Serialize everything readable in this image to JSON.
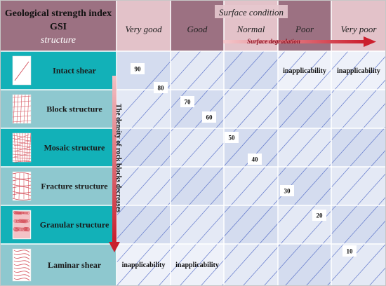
{
  "header": {
    "title_line1": "Geological strength index",
    "title_line2": "GSI",
    "structure_label": "structure",
    "surface_condition": "Surface condition",
    "surface_degradation": "Surface degradation"
  },
  "columns": [
    "Very good",
    "Good",
    "Normal",
    "Poor",
    "Very poor"
  ],
  "rows": [
    {
      "label": "Intact shear",
      "icon": "intact-shear-sketch"
    },
    {
      "label": "Block structure",
      "icon": "block-structure-sketch"
    },
    {
      "label": "Mosaic structure",
      "icon": "mosaic-structure-sketch"
    },
    {
      "label": "Fracture structure",
      "icon": "fracture-structure-sketch"
    },
    {
      "label": "Granular structure",
      "icon": "granular-structure-sketch"
    },
    {
      "label": "Laminar shear",
      "icon": "laminar-shear-sketch"
    }
  ],
  "gsi_values": [
    "90",
    "80",
    "70",
    "60",
    "50",
    "40",
    "30",
    "20",
    "10"
  ],
  "inapplicable": {
    "label": "inapplicability",
    "cells": [
      {
        "row": 0,
        "col": 3
      },
      {
        "row": 0,
        "col": 4
      },
      {
        "row": 5,
        "col": 0
      },
      {
        "row": 5,
        "col": 1
      }
    ]
  },
  "vertical_axis_label": "The density of rock blocks decreases",
  "colors": {
    "header_bg": "#e3c2c9",
    "title_bg": "#9c7182",
    "row_label_bg": "#12b1b8",
    "row_label_bg_alt": "#8ec8cf",
    "cell_bg": "#d4dcef",
    "cell_bg_alt": "#e4e9f5",
    "grid_line": "#ffffff",
    "diagonal_line": "#4a64c4",
    "arrow": "#d2303b",
    "sketch": "#d44f5a"
  }
}
